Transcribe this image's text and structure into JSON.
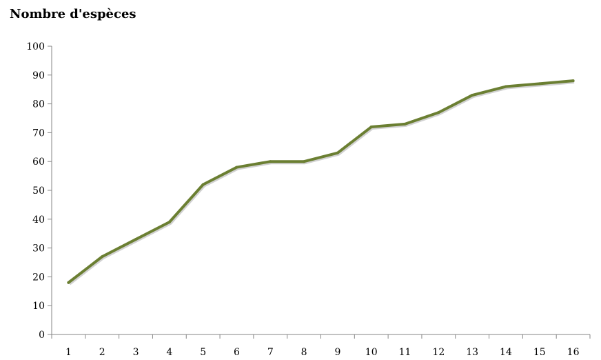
{
  "chart_data": {
    "type": "line",
    "title": "Nombre d'espèces",
    "xlabel": "",
    "ylabel": "",
    "x": [
      1,
      2,
      3,
      4,
      5,
      6,
      7,
      8,
      9,
      10,
      11,
      12,
      13,
      14,
      15,
      16
    ],
    "series": [
      {
        "values": [
          18,
          27,
          33,
          39,
          52,
          58,
          60,
          60,
          63,
          72,
          73,
          77,
          83,
          86,
          87,
          88
        ],
        "color": "#6b7f32"
      }
    ],
    "ylim": [
      0,
      100
    ],
    "yticks": [
      0,
      10,
      20,
      30,
      40,
      50,
      60,
      70,
      80,
      90,
      100
    ],
    "xticks": [
      "1",
      "2",
      "3",
      "4",
      "5",
      "6",
      "7",
      "8",
      "9",
      "10",
      "11",
      "12",
      "13",
      "14",
      "15",
      "16"
    ],
    "grid": false,
    "legend": "none"
  }
}
